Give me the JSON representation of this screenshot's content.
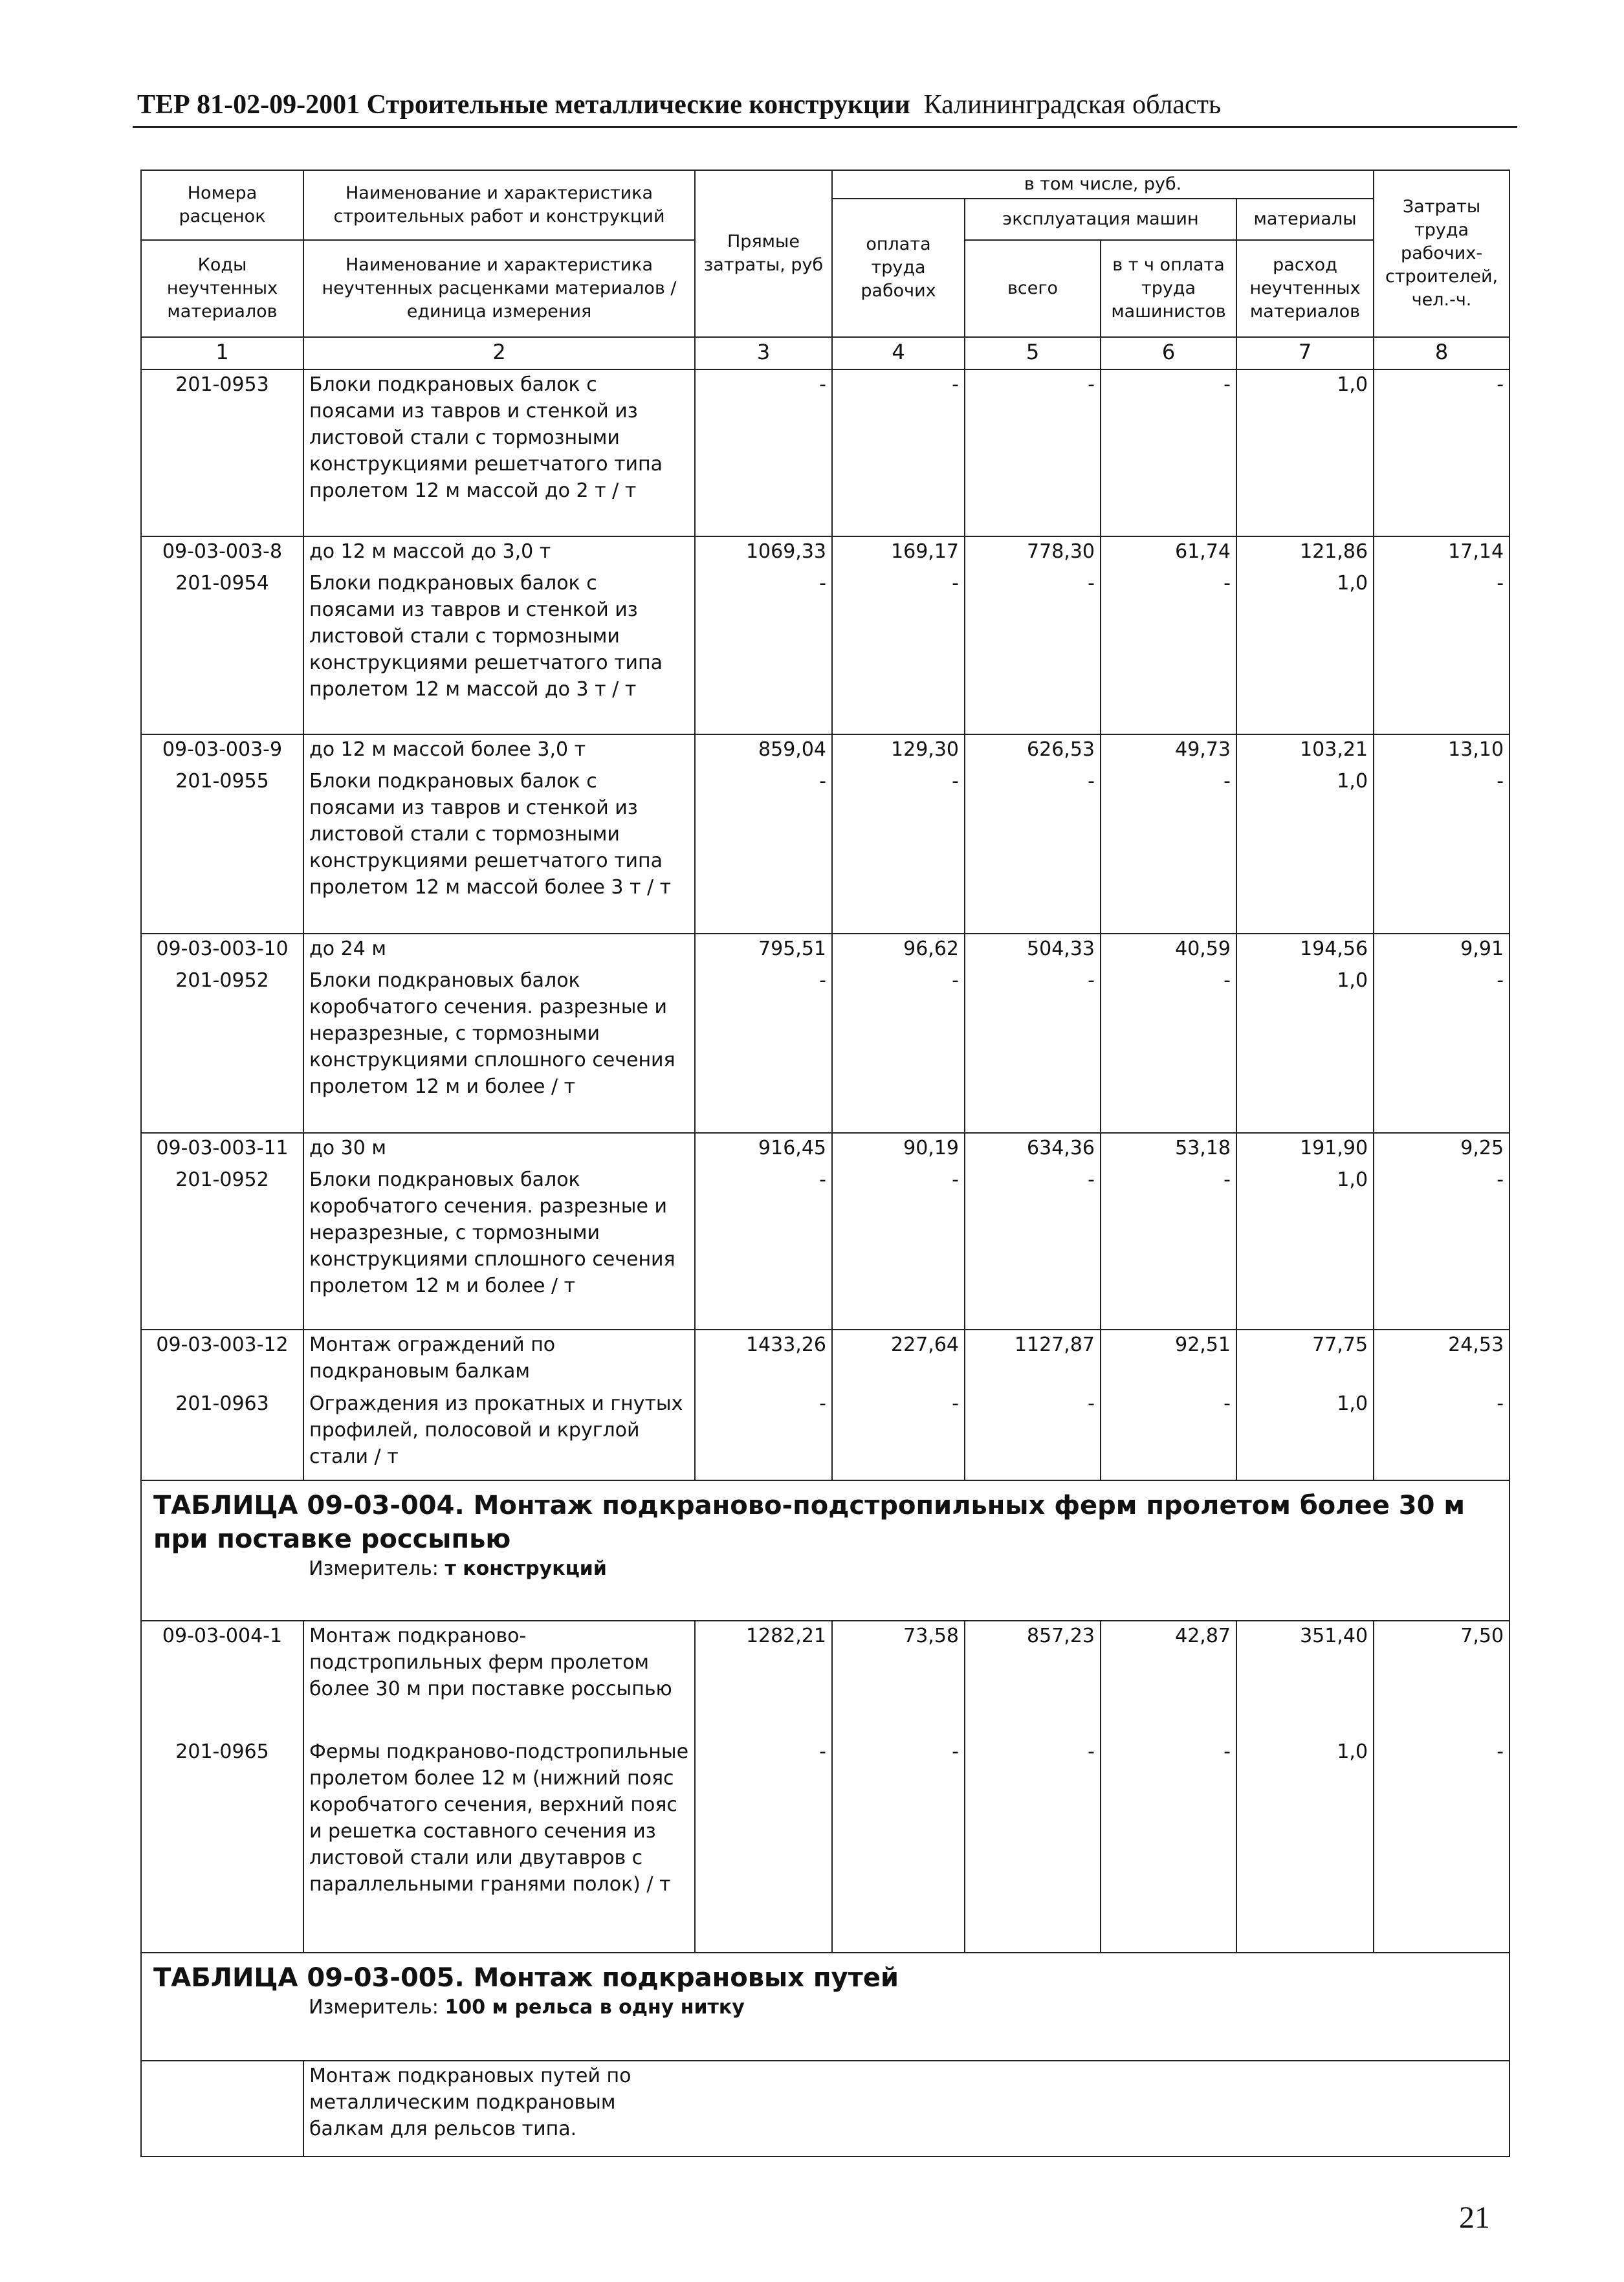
{
  "header": {
    "code": "ТЕР 81-02-09-2001",
    "title": "Строительные металлические конструкции",
    "region": "Калининградская область"
  },
  "table_head": {
    "col1_top": "Номера расценок",
    "col1_bottom": "Коды неучтенных материалов",
    "col2_top": "Наименование и характеристика строительных работ и конструкций",
    "col2_bottom": "Наименование и характеристика неучтенных расценками материалов / единица измерения",
    "direct_costs": "Прямые затраты, руб",
    "including": "в том числе, руб.",
    "labor_pay": "оплата труда рабочих",
    "machine_operation": "эксплуатация машин",
    "machine_total": "всего",
    "machinist_pay": "в т ч оплата труда машинистов",
    "materials": "материалы",
    "unaccounted_materials": "расход неучтенных материалов",
    "labor_costs": "Затраты труда рабочих-строителей, чел.-ч.",
    "column_numbers": [
      "1",
      "2",
      "3",
      "4",
      "5",
      "6",
      "7",
      "8"
    ]
  },
  "rows": [
    {
      "material": {
        "code": "201-0953",
        "desc": "Блоки подкрановых балок с поясами из тавров и стенкой из листовой стали с тормозными конструкциями решетчатого типа пролетом 12 м массой до 2 т / т",
        "values": [
          "-",
          "-",
          "-",
          "-",
          "1,0",
          "-"
        ]
      }
    },
    {
      "rate": {
        "code": "09-03-003-8",
        "desc": "до 12 м массой до 3,0 т",
        "values": [
          "1069,33",
          "169,17",
          "778,30",
          "61,74",
          "121,86",
          "17,14"
        ]
      },
      "material": {
        "code": "201-0954",
        "desc": "Блоки подкрановых балок с поясами из тавров и стенкой из листовой стали с тормозными конструкциями решетчатого типа пролетом 12 м массой до 3 т / т",
        "values": [
          "-",
          "-",
          "-",
          "-",
          "1,0",
          "-"
        ]
      }
    },
    {
      "rate": {
        "code": "09-03-003-9",
        "desc": "до 12 м массой более 3,0 т",
        "values": [
          "859,04",
          "129,30",
          "626,53",
          "49,73",
          "103,21",
          "13,10"
        ]
      },
      "material": {
        "code": "201-0955",
        "desc": "Блоки подкрановых балок с поясами из тавров и стенкой из листовой стали с тормозными конструкциями решетчатого типа пролетом 12 м массой более 3 т / т",
        "values": [
          "-",
          "-",
          "-",
          "-",
          "1,0",
          "-"
        ]
      }
    },
    {
      "rate": {
        "code": "09-03-003-10",
        "desc": "до 24 м",
        "values": [
          "795,51",
          "96,62",
          "504,33",
          "40,59",
          "194,56",
          "9,91"
        ]
      },
      "material": {
        "code": "201-0952",
        "desc": "Блоки подкрановых балок коробчатого сечения. разрезные и неразрезные, с тормозными конструкциями сплошного сечения пролетом 12 м и более / т",
        "values": [
          "-",
          "-",
          "-",
          "-",
          "1,0",
          "-"
        ]
      }
    },
    {
      "rate": {
        "code": "09-03-003-11",
        "desc": "до 30 м",
        "values": [
          "916,45",
          "90,19",
          "634,36",
          "53,18",
          "191,90",
          "9,25"
        ]
      },
      "material": {
        "code": "201-0952",
        "desc": "Блоки подкрановых балок коробчатого сечения. разрезные и неразрезные, с тормозными конструкциями сплошного сечения пролетом 12 м и более / т",
        "values": [
          "-",
          "-",
          "-",
          "-",
          "1,0",
          "-"
        ]
      }
    },
    {
      "rate": {
        "code": "09-03-003-12",
        "desc": "Монтаж ограждений по подкрановым балкам",
        "values": [
          "1433,26",
          "227,64",
          "1127,87",
          "92,51",
          "77,75",
          "24,53"
        ]
      },
      "material": {
        "code": "201-0963",
        "desc": "Ограждения из прокатных и гнутых профилей, полосовой и круглой стали / т",
        "values": [
          "-",
          "-",
          "-",
          "-",
          "1,0",
          "-"
        ]
      }
    },
    {
      "section": {
        "title": "ТАБЛИЦА  09-03-004.  Монтаж подкраново-подстропильных ферм пролетом более 30 м при поставке россыпью",
        "measure_label": "Измеритель:",
        "measure_value": "т конструкций"
      }
    },
    {
      "rate": {
        "code": "09-03-004-1",
        "desc": "Монтаж подкраново-подстропильных ферм пролетом более 30 м при поставке россыпью",
        "values": [
          "1282,21",
          "73,58",
          "857,23",
          "42,87",
          "351,40",
          "7,50"
        ]
      },
      "material": {
        "code": "201-0965",
        "desc": "Фермы подкраново-подстропильные пролетом более 12 м (нижний пояс коробчатого сечения, верхний пояс и решетка составного сечения из листовой стали или двутавров с параллельными гранями полок) / т",
        "values": [
          "-",
          "-",
          "-",
          "-",
          "1,0",
          "-"
        ]
      }
    },
    {
      "section": {
        "title": "ТАБЛИЦА  09-03-005.  Монтаж подкрановых путей",
        "measure_label": "Измеритель:",
        "measure_value": "100 м рельса в одну нитку"
      }
    },
    {
      "group": {
        "code": "",
        "desc": "Монтаж подкрановых путей по металлическим подкрановым балкам для рельсов типа."
      }
    }
  ],
  "page_number": "21"
}
